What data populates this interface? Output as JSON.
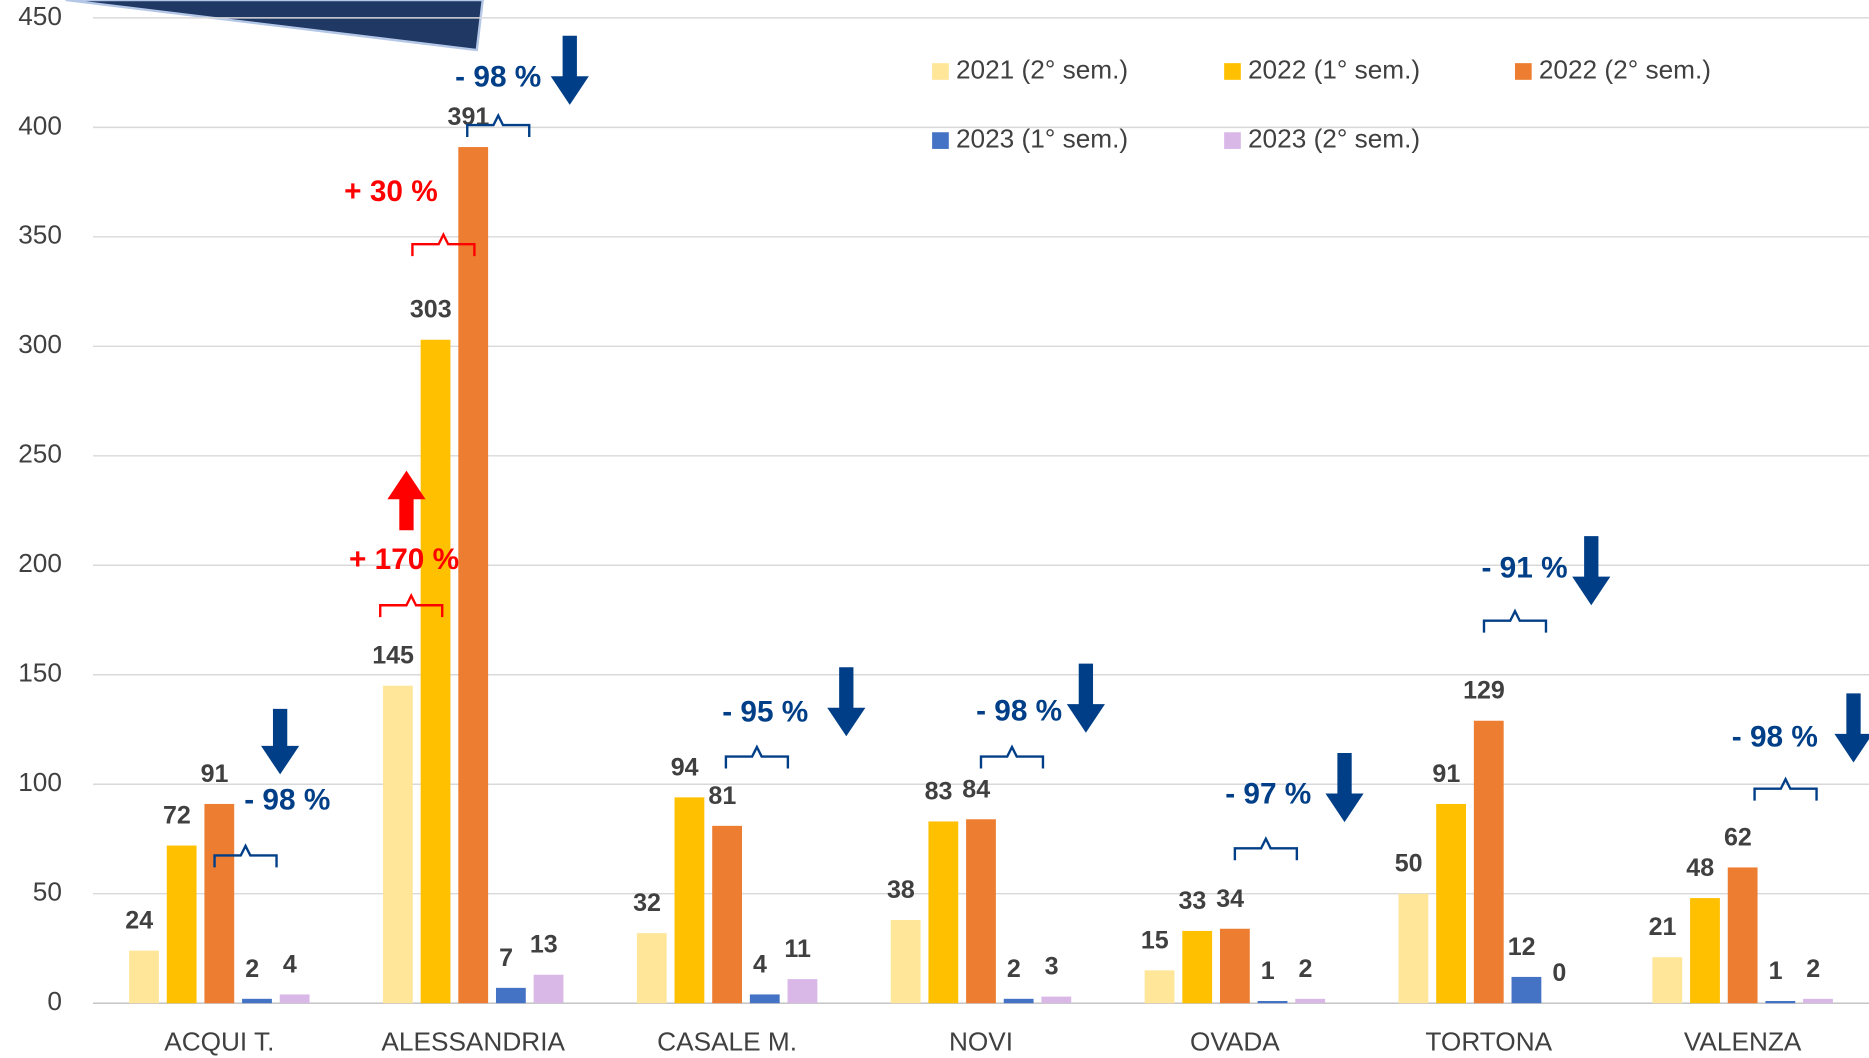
{
  "chart_data": {
    "type": "bar",
    "categories": [
      "ACQUI T.",
      "ALESSANDRIA",
      "CASALE M.",
      "NOVI",
      "OVADA",
      "TORTONA",
      "VALENZA"
    ],
    "series": [
      {
        "name": "2021 (2° sem.)",
        "color": "#FFE699",
        "values": [
          24,
          145,
          32,
          38,
          15,
          50,
          21
        ]
      },
      {
        "name": "2022 (1° sem.)",
        "color": "#FFC000",
        "values": [
          72,
          303,
          94,
          83,
          33,
          91,
          48
        ]
      },
      {
        "name": "2022 (2° sem.)",
        "color": "#ED7D31",
        "values": [
          91,
          391,
          81,
          84,
          34,
          129,
          62
        ]
      },
      {
        "name": "2023 (1° sem.)",
        "color": "#4472C4",
        "values": [
          2,
          7,
          4,
          2,
          1,
          12,
          1
        ]
      },
      {
        "name": "2023 (2° sem.)",
        "color": "#D9B8E8",
        "values": [
          4,
          13,
          11,
          3,
          2,
          0,
          2
        ]
      }
    ],
    "ylim": [
      0,
      450
    ],
    "yticks": [
      0,
      50,
      100,
      150,
      200,
      250,
      300,
      350,
      400,
      450
    ],
    "grid": true,
    "annotations": [
      {
        "text": "- 98 %",
        "color": "#003F87"
      },
      {
        "text": "- 98 %",
        "color": "#003F87"
      },
      {
        "text": "+ 30 %",
        "color": "#FF0000"
      },
      {
        "text": "+ 170 %",
        "color": "#FF0000"
      },
      {
        "text": "- 95 %",
        "color": "#003F87"
      },
      {
        "text": "- 98 %",
        "color": "#003F87"
      },
      {
        "text": "- 97 %",
        "color": "#003F87"
      },
      {
        "text": "- 91 %",
        "color": "#003F87"
      },
      {
        "text": "- 98 %",
        "color": "#003F87"
      }
    ]
  }
}
